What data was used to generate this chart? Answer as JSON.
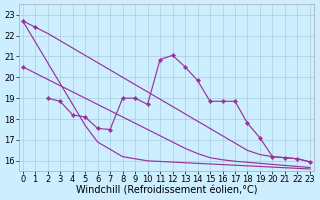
{
  "background_color": "#cceeff",
  "grid_color": "#aaccdd",
  "line_color": "#993399",
  "xlim": [
    -0.3,
    23.3
  ],
  "ylim": [
    15.5,
    23.5
  ],
  "yticks": [
    16,
    17,
    18,
    19,
    20,
    21,
    22,
    23
  ],
  "xticks": [
    0,
    1,
    2,
    3,
    4,
    5,
    6,
    7,
    8,
    9,
    10,
    11,
    12,
    13,
    14,
    15,
    16,
    17,
    18,
    19,
    20,
    21,
    22,
    23
  ],
  "xlabel": "Windchill (Refroidissement éolien,°C)",
  "tick_fontsize": 6,
  "xlabel_fontsize": 7,
  "line1_x": [
    0,
    1,
    2,
    3,
    4,
    5,
    6,
    7,
    8,
    9,
    10,
    11,
    12,
    13,
    14,
    15,
    16,
    17,
    18,
    19,
    20,
    21,
    22,
    23
  ],
  "line1_y": [
    22.7,
    22.4,
    22.1,
    21.75,
    21.4,
    21.05,
    20.7,
    20.35,
    20.0,
    19.65,
    19.3,
    18.95,
    18.6,
    18.25,
    17.9,
    17.55,
    17.2,
    16.85,
    16.5,
    16.3,
    16.2,
    16.15,
    16.1,
    15.95
  ],
  "line2_x": [
    0,
    1,
    2,
    3,
    4,
    5,
    6,
    7,
    8,
    9,
    10,
    11,
    12,
    13,
    14,
    15,
    16,
    17,
    18,
    19,
    20,
    21,
    22,
    23
  ],
  "line2_y": [
    22.7,
    21.7,
    20.7,
    19.7,
    18.7,
    17.7,
    16.9,
    16.55,
    16.2,
    16.1,
    16.0,
    15.97,
    15.94,
    15.91,
    15.88,
    15.85,
    15.82,
    15.79,
    15.76,
    15.73,
    15.7,
    15.67,
    15.64,
    15.61
  ],
  "line3_x": [
    0,
    1,
    2,
    3,
    4,
    5,
    6,
    7,
    8,
    9,
    10,
    11,
    12,
    13,
    14,
    15,
    16,
    17,
    18,
    19,
    20,
    21,
    22,
    23
  ],
  "line3_y": [
    20.5,
    20.2,
    19.9,
    19.6,
    19.3,
    19.0,
    18.7,
    18.4,
    18.1,
    17.8,
    17.5,
    17.2,
    16.9,
    16.6,
    16.35,
    16.15,
    16.05,
    15.98,
    15.93,
    15.88,
    15.83,
    15.78,
    15.73,
    15.68
  ],
  "zigzag_x": [
    2,
    3,
    4,
    5,
    6,
    7,
    8,
    9,
    10,
    11,
    12,
    13,
    14,
    15,
    16,
    17,
    18,
    19,
    20,
    21,
    22,
    23
  ],
  "zigzag_y": [
    19.0,
    18.85,
    18.2,
    18.1,
    17.55,
    17.5,
    19.0,
    19.0,
    18.7,
    20.85,
    21.05,
    20.5,
    19.85,
    18.85,
    18.85,
    18.85,
    17.8,
    17.1,
    16.2,
    16.15,
    16.1,
    15.95
  ]
}
